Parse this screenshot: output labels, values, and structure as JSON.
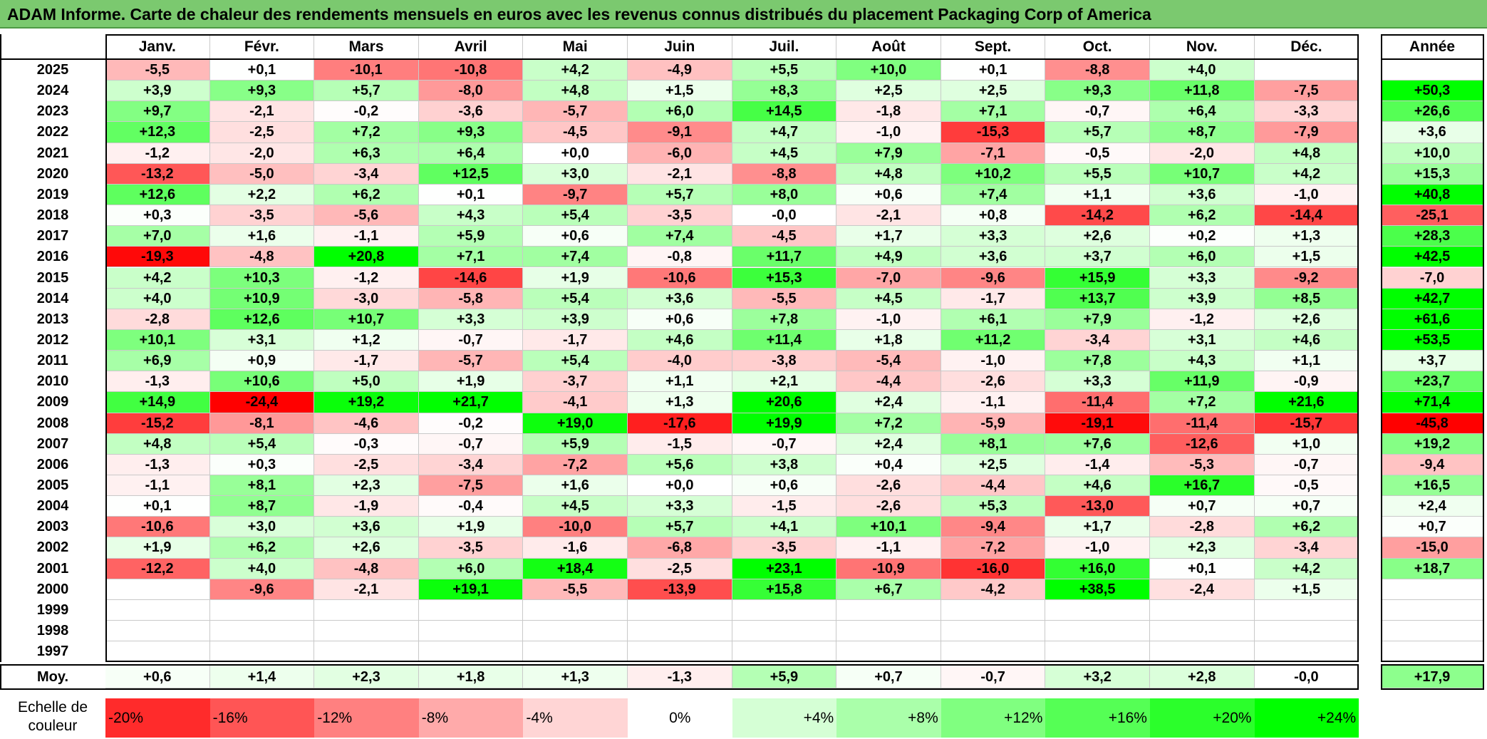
{
  "title": "ADAM Informe. Carte de chaleur des rendements mensuels en euros avec les revenus connus distribués du placement Packaging Corp of America",
  "scale_label_line1": "Echelle de",
  "scale_label_line2": "couleur",
  "colors": {
    "title_bg": "#7bc96f",
    "neg_max": "#ff0000",
    "pos_max": "#00ff00",
    "neutral": "#ffffff"
  },
  "chart_data": {
    "type": "heatmap",
    "months": [
      "Janv.",
      "Févr.",
      "Mars",
      "Avril",
      "Mai",
      "Juin",
      "Juil.",
      "Août",
      "Sept.",
      "Oct.",
      "Nov.",
      "Déc."
    ],
    "year_header": "Année",
    "avg_label": "Moy.",
    "rows": [
      {
        "year": "2025",
        "m": [
          "-5,5",
          "+0,1",
          "-10,1",
          "-10,8",
          "+4,2",
          "-4,9",
          "+5,5",
          "+10,0",
          "+0,1",
          "-8,8",
          "+4,0",
          ""
        ],
        "y": ""
      },
      {
        "year": "2024",
        "m": [
          "+3,9",
          "+9,3",
          "+5,7",
          "-8,0",
          "+4,8",
          "+1,5",
          "+8,3",
          "+2,5",
          "+2,5",
          "+9,3",
          "+11,8",
          "-7,5"
        ],
        "y": "+50,3"
      },
      {
        "year": "2023",
        "m": [
          "+9,7",
          "-2,1",
          "-0,2",
          "-3,6",
          "-5,7",
          "+6,0",
          "+14,5",
          "-1,8",
          "+7,1",
          "-0,7",
          "+6,4",
          "-3,3"
        ],
        "y": "+26,6"
      },
      {
        "year": "2022",
        "m": [
          "+12,3",
          "-2,5",
          "+7,2",
          "+9,3",
          "-4,5",
          "-9,1",
          "+4,7",
          "-1,0",
          "-15,3",
          "+5,7",
          "+8,7",
          "-7,9"
        ],
        "y": "+3,6"
      },
      {
        "year": "2021",
        "m": [
          "-1,2",
          "-2,0",
          "+6,3",
          "+6,4",
          "+0,0",
          "-6,0",
          "+4,5",
          "+7,9",
          "-7,1",
          "-0,5",
          "-2,0",
          "+4,8"
        ],
        "y": "+10,0"
      },
      {
        "year": "2020",
        "m": [
          "-13,2",
          "-5,0",
          "-3,4",
          "+12,5",
          "+3,0",
          "-2,1",
          "-8,8",
          "+4,8",
          "+10,2",
          "+5,5",
          "+10,7",
          "+4,2"
        ],
        "y": "+15,3"
      },
      {
        "year": "2019",
        "m": [
          "+12,6",
          "+2,2",
          "+6,2",
          "+0,1",
          "-9,7",
          "+5,7",
          "+8,0",
          "+0,6",
          "+7,4",
          "+1,1",
          "+3,6",
          "-1,0"
        ],
        "y": "+40,8"
      },
      {
        "year": "2018",
        "m": [
          "+0,3",
          "-3,5",
          "-5,6",
          "+4,3",
          "+5,4",
          "-3,5",
          "-0,0",
          "-2,1",
          "+0,8",
          "-14,2",
          "+6,2",
          "-14,4"
        ],
        "y": "-25,1"
      },
      {
        "year": "2017",
        "m": [
          "+7,0",
          "+1,6",
          "-1,1",
          "+5,9",
          "+0,6",
          "+7,4",
          "-4,5",
          "+1,7",
          "+3,3",
          "+2,6",
          "+0,2",
          "+1,3"
        ],
        "y": "+28,3"
      },
      {
        "year": "2016",
        "m": [
          "-19,3",
          "-4,8",
          "+20,8",
          "+7,1",
          "+7,4",
          "-0,8",
          "+11,7",
          "+4,9",
          "+3,6",
          "+3,7",
          "+6,0",
          "+1,5"
        ],
        "y": "+42,5"
      },
      {
        "year": "2015",
        "m": [
          "+4,2",
          "+10,3",
          "-1,2",
          "-14,6",
          "+1,9",
          "-10,6",
          "+15,3",
          "-7,0",
          "-9,6",
          "+15,9",
          "+3,3",
          "-9,2"
        ],
        "y": "-7,0"
      },
      {
        "year": "2014",
        "m": [
          "+4,0",
          "+10,9",
          "-3,0",
          "-5,8",
          "+5,4",
          "+3,6",
          "-5,5",
          "+4,5",
          "-1,7",
          "+13,7",
          "+3,9",
          "+8,5"
        ],
        "y": "+42,7"
      },
      {
        "year": "2013",
        "m": [
          "-2,8",
          "+12,6",
          "+10,7",
          "+3,3",
          "+3,9",
          "+0,6",
          "+7,8",
          "-1,0",
          "+6,1",
          "+7,9",
          "-1,2",
          "+2,6"
        ],
        "y": "+61,6"
      },
      {
        "year": "2012",
        "m": [
          "+10,1",
          "+3,1",
          "+1,2",
          "-0,7",
          "-1,7",
          "+4,6",
          "+11,4",
          "+1,8",
          "+11,2",
          "-3,4",
          "+3,1",
          "+4,6"
        ],
        "y": "+53,5"
      },
      {
        "year": "2011",
        "m": [
          "+6,9",
          "+0,9",
          "-1,7",
          "-5,7",
          "+5,4",
          "-4,0",
          "-3,8",
          "-5,4",
          "-1,0",
          "+7,8",
          "+4,3",
          "+1,1"
        ],
        "y": "+3,7"
      },
      {
        "year": "2010",
        "m": [
          "-1,3",
          "+10,6",
          "+5,0",
          "+1,9",
          "-3,7",
          "+1,1",
          "+2,1",
          "-4,4",
          "-2,6",
          "+3,3",
          "+11,9",
          "-0,9"
        ],
        "y": "+23,7"
      },
      {
        "year": "2009",
        "m": [
          "+14,9",
          "-24,4",
          "+19,2",
          "+21,7",
          "-4,1",
          "+1,3",
          "+20,6",
          "+2,4",
          "-1,1",
          "-11,4",
          "+7,2",
          "+21,6"
        ],
        "y": "+71,4"
      },
      {
        "year": "2008",
        "m": [
          "-15,2",
          "-8,1",
          "-4,6",
          "-0,2",
          "+19,0",
          "-17,6",
          "+19,9",
          "+7,2",
          "-5,9",
          "-19,1",
          "-11,4",
          "-15,7"
        ],
        "y": "-45,8"
      },
      {
        "year": "2007",
        "m": [
          "+4,8",
          "+5,4",
          "-0,3",
          "-0,7",
          "+5,9",
          "-1,5",
          "-0,7",
          "+2,4",
          "+8,1",
          "+7,6",
          "-12,6",
          "+1,0"
        ],
        "y": "+19,2"
      },
      {
        "year": "2006",
        "m": [
          "-1,3",
          "+0,3",
          "-2,5",
          "-3,4",
          "-7,2",
          "+5,6",
          "+3,8",
          "+0,4",
          "+2,5",
          "-1,4",
          "-5,3",
          "-0,7"
        ],
        "y": "-9,4"
      },
      {
        "year": "2005",
        "m": [
          "-1,1",
          "+8,1",
          "+2,3",
          "-7,5",
          "+1,6",
          "+0,0",
          "+0,6",
          "-2,6",
          "-4,4",
          "+4,6",
          "+16,7",
          "-0,5"
        ],
        "y": "+16,5"
      },
      {
        "year": "2004",
        "m": [
          "+0,1",
          "+8,7",
          "-1,9",
          "-0,4",
          "+4,5",
          "+3,3",
          "-1,5",
          "-2,6",
          "+5,3",
          "-13,0",
          "+0,7",
          "+0,7"
        ],
        "y": "+2,4"
      },
      {
        "year": "2003",
        "m": [
          "-10,6",
          "+3,0",
          "+3,6",
          "+1,9",
          "-10,0",
          "+5,7",
          "+4,1",
          "+10,1",
          "-9,4",
          "+1,7",
          "-2,8",
          "+6,2"
        ],
        "y": "+0,7"
      },
      {
        "year": "2002",
        "m": [
          "+1,9",
          "+6,2",
          "+2,6",
          "-3,5",
          "-1,6",
          "-6,8",
          "-3,5",
          "-1,1",
          "-7,2",
          "-1,0",
          "+2,3",
          "-3,4"
        ],
        "y": "-15,0"
      },
      {
        "year": "2001",
        "m": [
          "-12,2",
          "+4,0",
          "-4,8",
          "+6,0",
          "+18,4",
          "-2,5",
          "+23,1",
          "-10,9",
          "-16,0",
          "+16,0",
          "+0,1",
          "+4,2"
        ],
        "y": "+18,7"
      },
      {
        "year": "2000",
        "m": [
          "",
          "-9,6",
          "-2,1",
          "+19,1",
          "-5,5",
          "-13,9",
          "+15,8",
          "+6,7",
          "-4,2",
          "+38,5",
          "-2,4",
          "+1,5"
        ],
        "y": ""
      },
      {
        "year": "1999",
        "m": [
          "",
          "",
          "",
          "",
          "",
          "",
          "",
          "",
          "",
          "",
          "",
          ""
        ],
        "y": ""
      },
      {
        "year": "1998",
        "m": [
          "",
          "",
          "",
          "",
          "",
          "",
          "",
          "",
          "",
          "",
          "",
          ""
        ],
        "y": ""
      },
      {
        "year": "1997",
        "m": [
          "",
          "",
          "",
          "",
          "",
          "",
          "",
          "",
          "",
          "",
          "",
          ""
        ],
        "y": ""
      }
    ],
    "averages": {
      "m": [
        "+0,6",
        "+1,4",
        "+2,3",
        "+1,8",
        "+1,3",
        "-1,3",
        "+5,9",
        "+0,7",
        "-0,7",
        "+3,2",
        "+2,8",
        "-0,0"
      ],
      "y": "+17,9"
    },
    "color_scale": [
      "-20%",
      "-16%",
      "-12%",
      "-8%",
      "-4%",
      "0%",
      "+4%",
      "+8%",
      "+12%",
      "+16%",
      "+20%",
      "+24%"
    ],
    "color_scale_values": [
      -20,
      -16,
      -12,
      -8,
      -4,
      0,
      4,
      8,
      12,
      16,
      20,
      24
    ]
  }
}
